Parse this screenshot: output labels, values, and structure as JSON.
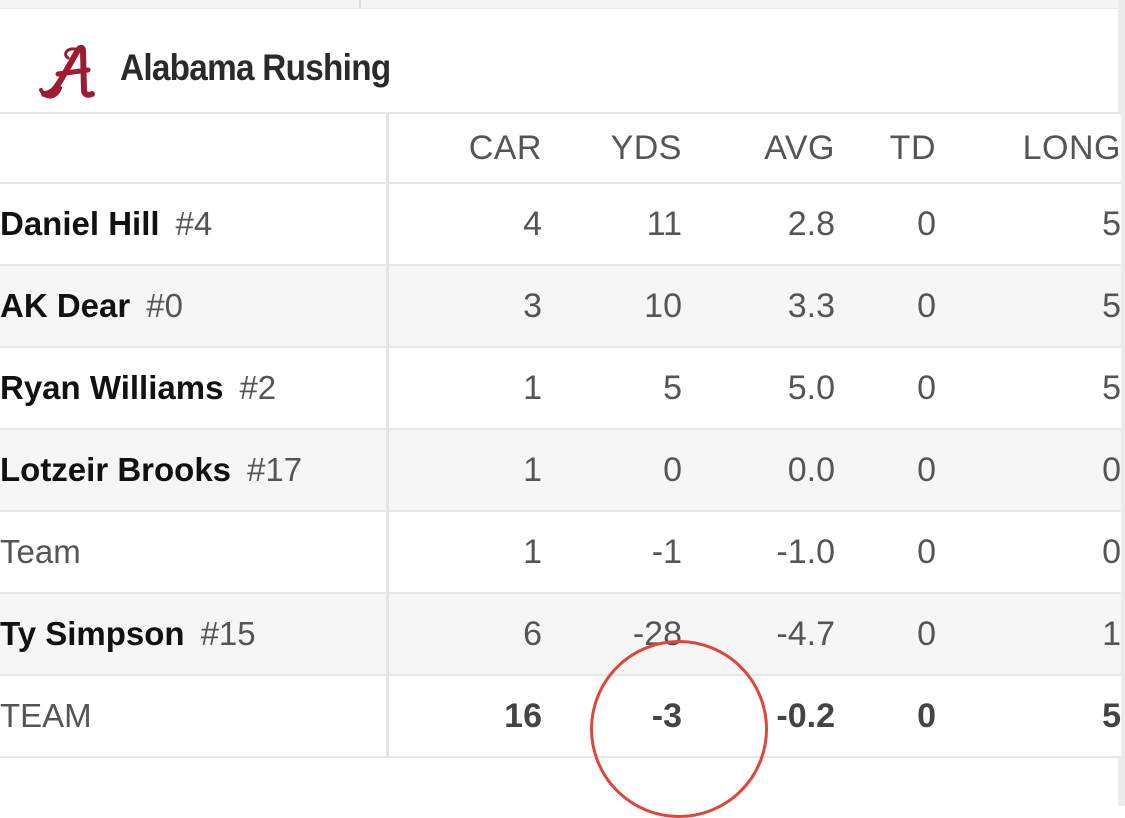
{
  "header": {
    "title": "Alabama Rushing",
    "logo_icon": "alabama-script-a-logo",
    "logo_color": "#9e1b32"
  },
  "table": {
    "columns": [
      "CAR",
      "YDS",
      "AVG",
      "TD",
      "LONG"
    ],
    "rows": [
      {
        "name": "Daniel Hill",
        "number": "#4",
        "car": "4",
        "yds": "11",
        "avg": "2.8",
        "td": "0",
        "long": "5"
      },
      {
        "name": "AK Dear",
        "number": "#0",
        "car": "3",
        "yds": "10",
        "avg": "3.3",
        "td": "0",
        "long": "5"
      },
      {
        "name": "Ryan Williams",
        "number": "#2",
        "car": "1",
        "yds": "5",
        "avg": "5.0",
        "td": "0",
        "long": "5"
      },
      {
        "name": "Lotzeir Brooks",
        "number": "#17",
        "car": "1",
        "yds": "0",
        "avg": "0.0",
        "td": "0",
        "long": "0"
      },
      {
        "name": "Team",
        "number": "",
        "car": "1",
        "yds": "-1",
        "avg": "-1.0",
        "td": "0",
        "long": "0"
      },
      {
        "name": "Ty Simpson",
        "number": "#15",
        "car": "6",
        "yds": "-28",
        "avg": "-4.7",
        "td": "0",
        "long": "1"
      }
    ],
    "totals": {
      "label": "TEAM",
      "car": "16",
      "yds": "-3",
      "avg": "-0.2",
      "td": "0",
      "long": "5"
    }
  },
  "annotation": {
    "circle_color": "#e0443a"
  }
}
